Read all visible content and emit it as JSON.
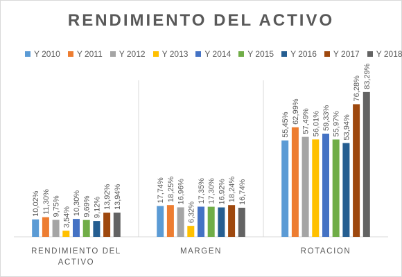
{
  "chart_data": {
    "type": "bar",
    "title": "RENDIMIENTO DEL ACTIVO",
    "categories": [
      "RENDIMIENTO DEL ACTIVO",
      "MARGEN",
      "ROTACION"
    ],
    "category_lines": [
      [
        "RENDIMIENTO DEL",
        "ACTIVO"
      ],
      [
        "MARGEN"
      ],
      [
        "ROTACION"
      ]
    ],
    "ylim": [
      0,
      90
    ],
    "grid": false,
    "legend_position": "top",
    "series": [
      {
        "name": "Y 2010",
        "color": "#5b9bd5",
        "values": [
          10.02,
          17.74,
          55.45
        ],
        "labels": [
          "10,02%",
          "17,74%",
          "55,45%"
        ]
      },
      {
        "name": "Y 2011",
        "color": "#ed7d31",
        "values": [
          11.3,
          18.25,
          62.99
        ],
        "labels": [
          "11,30%",
          "18,25%",
          "62,99%"
        ]
      },
      {
        "name": "Y 2012",
        "color": "#a5a5a5",
        "values": [
          9.75,
          16.96,
          57.49
        ],
        "labels": [
          "9,75%",
          "16,96%",
          "57,49%"
        ]
      },
      {
        "name": "Y 2013",
        "color": "#ffc000",
        "values": [
          3.54,
          6.32,
          56.01
        ],
        "labels": [
          "3,54%",
          "6,32%",
          "56,01%"
        ]
      },
      {
        "name": "Y 2014",
        "color": "#4472c4",
        "values": [
          10.3,
          17.35,
          59.33
        ],
        "labels": [
          "10,30%",
          "17,35%",
          "59,33%"
        ]
      },
      {
        "name": "Y 2015",
        "color": "#70ad47",
        "values": [
          9.69,
          17.3,
          55.97
        ],
        "labels": [
          "9,69%",
          "17,30%",
          "55,97%"
        ]
      },
      {
        "name": "Y 2016",
        "color": "#255e91",
        "values": [
          9.12,
          16.92,
          53.94
        ],
        "labels": [
          "9,12%",
          "16,92%",
          "53,94%"
        ]
      },
      {
        "name": "Y 2017",
        "color": "#9e480e",
        "values": [
          13.92,
          18.24,
          76.28
        ],
        "labels": [
          "13,92%",
          "18,24%",
          "76,28%"
        ]
      },
      {
        "name": "Y 2018",
        "color": "#636363",
        "values": [
          13.94,
          16.74,
          83.29
        ],
        "labels": [
          "13,94%",
          "16,74%",
          "83,29%"
        ]
      }
    ]
  }
}
